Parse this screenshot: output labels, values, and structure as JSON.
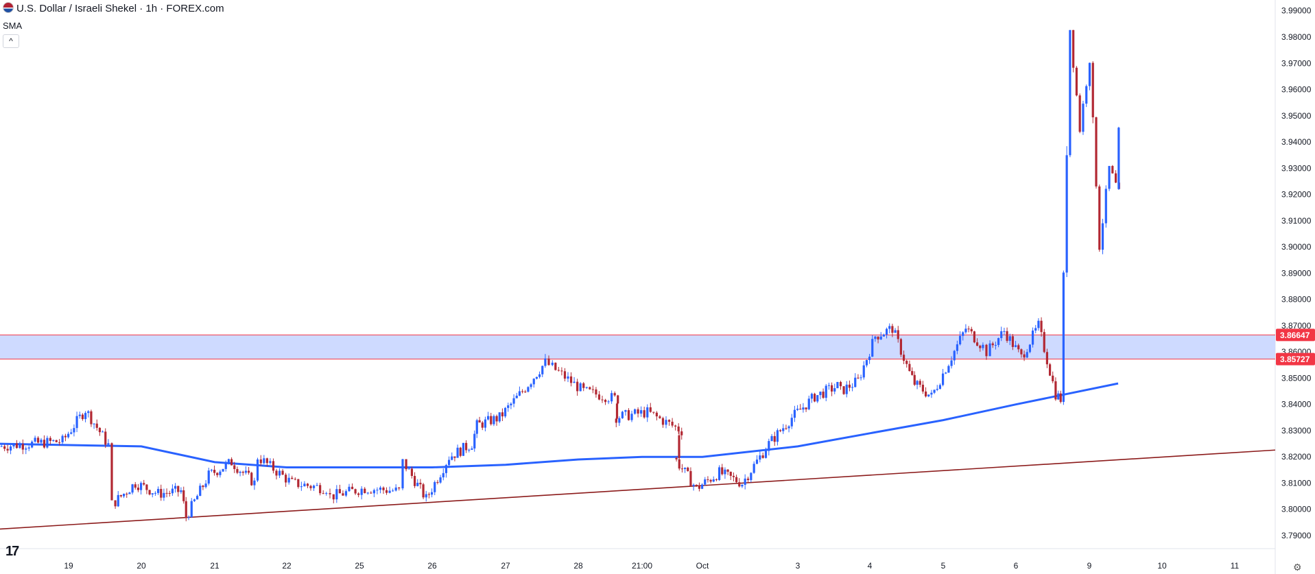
{
  "legend": {
    "title": "U.S. Dollar / Israeli Shekel · 1h · FOREX.com",
    "indicator": "SMA",
    "collapse_glyph": "^"
  },
  "icons": {
    "flag": "us-israel-flag-icon",
    "logo": "tradingview-logo-icon",
    "settings": "gear-icon"
  },
  "logo_text": "17",
  "settings_glyph": "⚙",
  "chart_data": {
    "type": "candlestick",
    "title": "U.S. Dollar / Israeli Shekel · 1h · FOREX.com",
    "y_axis": {
      "ticks": [
        "3.99000",
        "3.98000",
        "3.97000",
        "3.96000",
        "3.95000",
        "3.94000",
        "3.93000",
        "3.92000",
        "3.91000",
        "3.90000",
        "3.89000",
        "3.88000",
        "3.87000",
        "3.86000",
        "3.85000",
        "3.84000",
        "3.83000",
        "3.82000",
        "3.81000",
        "3.80000",
        "3.79000"
      ],
      "range": [
        3.786,
        3.993
      ]
    },
    "x_axis": {
      "ticks": [
        "19",
        "20",
        "21",
        "22",
        "25",
        "26",
        "27",
        "28",
        "21:00",
        "Oct",
        "3",
        "4",
        "5",
        "6",
        "9",
        "10",
        "11"
      ]
    },
    "price_labels": [
      {
        "value": "3.86647",
        "color": "#f23645"
      },
      {
        "value": "3.85727",
        "color": "#f23645"
      }
    ],
    "zone": {
      "from": 3.85727,
      "to": 3.86647,
      "fill": "#c9d6ff",
      "border": "#f23645"
    },
    "trendline": {
      "from": {
        "x": "18 Sep",
        "y": 3.7925
      },
      "to": {
        "x": "11 Oct",
        "y": 3.8226
      },
      "color": "#8b1a1a"
    },
    "sma_color": "#2962ff",
    "up_color": "#2962ff",
    "down_color": "#b22833",
    "candle_path": [
      [
        "19",
        3.824
      ],
      [
        "19",
        3.826
      ],
      [
        "19",
        3.838
      ],
      [
        "19",
        3.8245
      ],
      [
        "20",
        3.802
      ],
      [
        "20",
        3.81
      ],
      [
        "20",
        3.806
      ],
      [
        "20",
        3.807
      ],
      [
        "21",
        3.797
      ],
      [
        "21",
        3.813
      ],
      [
        "21",
        3.818
      ],
      [
        "21",
        3.81
      ],
      [
        "22",
        3.82
      ],
      [
        "22",
        3.81
      ],
      [
        "22",
        3.808
      ],
      [
        "25",
        3.805
      ],
      [
        "25",
        3.808
      ],
      [
        "25",
        3.807
      ],
      [
        "26",
        3.818
      ],
      [
        "26",
        3.804
      ],
      [
        "26",
        3.82
      ],
      [
        "26",
        3.825
      ],
      [
        "27",
        3.832
      ],
      [
        "27",
        3.835
      ],
      [
        "27",
        3.845
      ],
      [
        "27",
        3.856
      ],
      [
        "28",
        3.855
      ],
      [
        "28",
        3.845
      ],
      [
        "28",
        3.842
      ],
      [
        "21:00",
        3.835
      ],
      [
        "21:00",
        3.837
      ],
      [
        "21:00",
        3.83
      ],
      [
        "Oct",
        3.82
      ],
      [
        "Oct",
        3.808
      ],
      [
        "Oct",
        3.814
      ],
      [
        "Oct",
        3.81
      ],
      [
        "3",
        3.825
      ],
      [
        "3",
        3.835
      ],
      [
        "3",
        3.843
      ],
      [
        "3",
        3.847
      ],
      [
        "4",
        3.845
      ],
      [
        "4",
        3.849
      ],
      [
        "4",
        3.866
      ],
      [
        "4",
        3.869
      ],
      [
        "4",
        3.852
      ],
      [
        "5",
        3.848
      ],
      [
        "5",
        3.843
      ],
      [
        "5",
        3.856
      ],
      [
        "5",
        3.869
      ],
      [
        "5",
        3.862
      ],
      [
        "6",
        3.86
      ],
      [
        "6",
        3.868
      ],
      [
        "6",
        3.858
      ],
      [
        "6",
        3.87
      ],
      [
        "6",
        3.844
      ],
      [
        "9",
        3.842
      ],
      [
        "9",
        3.983
      ],
      [
        "9",
        3.945
      ],
      [
        "9",
        3.972
      ],
      [
        "9",
        3.9
      ],
      [
        "9",
        3.93
      ],
      [
        "9",
        3.92
      ],
      [
        "9",
        3.944
      ]
    ],
    "sma_path": [
      [
        "19",
        3.825
      ],
      [
        "20",
        3.824
      ],
      [
        "21",
        3.818
      ],
      [
        "22",
        3.816
      ],
      [
        "25",
        3.816
      ],
      [
        "26",
        3.816
      ],
      [
        "27",
        3.817
      ],
      [
        "28",
        3.819
      ],
      [
        "21:00",
        3.82
      ],
      [
        "Oct",
        3.82
      ],
      [
        "3",
        3.824
      ],
      [
        "4",
        3.829
      ],
      [
        "5",
        3.834
      ],
      [
        "6",
        3.84
      ],
      [
        "9",
        3.848
      ]
    ]
  }
}
